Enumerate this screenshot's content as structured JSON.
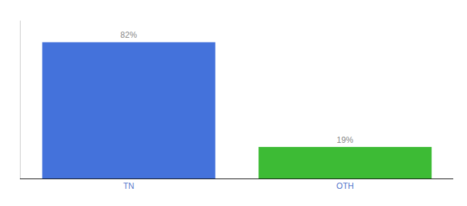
{
  "chart_data": {
    "type": "bar",
    "categories": [
      "TN",
      "OTH"
    ],
    "values": [
      82,
      19
    ],
    "value_labels": [
      "82%",
      "19%"
    ],
    "colors": [
      "#4472db",
      "#3dbb35"
    ],
    "ylim": [
      0,
      95
    ],
    "yticks": [],
    "grid": false,
    "data_labels": true,
    "tick_labels": "x"
  }
}
